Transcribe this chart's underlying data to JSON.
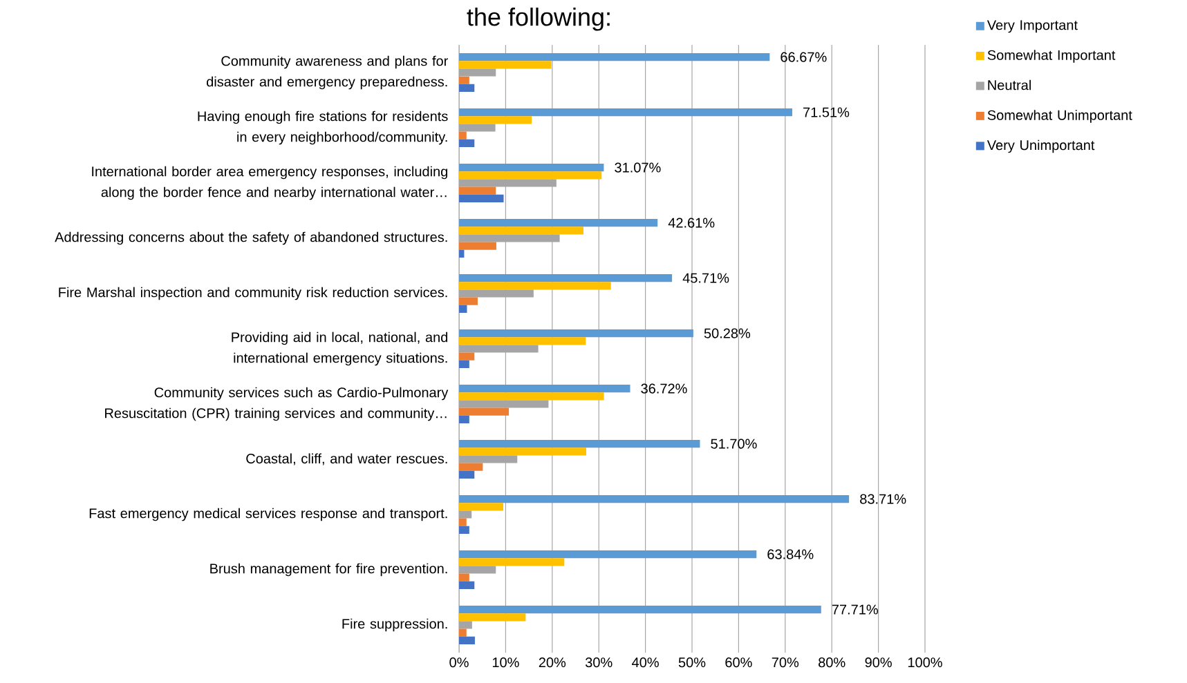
{
  "chart_data": {
    "type": "bar",
    "orientation": "horizontal",
    "title": "the following:",
    "categories": [
      "Community awareness and plans for disaster and emergency preparedness.",
      "Having enough fire stations for residents in every neighborhood/community.",
      "International border area emergency responses, including along the border fence and nearby international water…",
      "Addressing concerns about the safety of abandoned structures.",
      "Fire Marshal inspection and community risk reduction services.",
      "Providing aid in local, national, and international emergency situations.",
      "Community services such as Cardio-Pulmonary Resuscitation (CPR) training services and community…",
      "Coastal, cliff, and water rescues.",
      "Fast emergency medical services response and transport.",
      "Brush management for fire prevention.",
      "Fire suppression."
    ],
    "series": [
      {
        "name": "Very Important",
        "color": "#5b9bd5",
        "values": [
          66.67,
          71.51,
          31.07,
          42.61,
          45.71,
          50.28,
          36.72,
          51.7,
          83.71,
          63.84,
          77.71
        ],
        "value_labels": [
          "66.67%",
          "71.51%",
          "31.07%",
          "42.61%",
          "45.71%",
          "50.28%",
          "36.72%",
          "51.70%",
          "83.71%",
          "63.84%",
          "77.71%"
        ]
      },
      {
        "name": "Somewhat Important",
        "color": "#ffc000",
        "values": [
          19.8,
          15.6,
          30.6,
          26.7,
          32.6,
          27.2,
          31.1,
          27.3,
          9.5,
          22.6,
          14.3
        ]
      },
      {
        "name": "Neutral",
        "color": "#a5a5a5",
        "values": [
          7.9,
          7.8,
          20.9,
          21.6,
          16.0,
          17.0,
          19.2,
          12.5,
          2.7,
          7.9,
          2.8
        ]
      },
      {
        "name": "Somewhat Unimportant",
        "color": "#ed7d31",
        "values": [
          2.2,
          1.6,
          7.9,
          8.0,
          4.0,
          3.3,
          10.7,
          5.1,
          1.6,
          2.2,
          1.6
        ]
      },
      {
        "name": "Very Unimportant",
        "color": "#4472c4",
        "values": [
          3.3,
          3.3,
          9.6,
          1.1,
          1.7,
          2.2,
          2.2,
          3.3,
          2.2,
          3.3,
          3.4
        ]
      }
    ],
    "xlim": [
      0,
      100
    ],
    "xticks": [
      {
        "value": 0,
        "label": "0%"
      },
      {
        "value": 10,
        "label": "10%"
      },
      {
        "value": 20,
        "label": "20%"
      },
      {
        "value": 30,
        "label": "30%"
      },
      {
        "value": 40,
        "label": "40%"
      },
      {
        "value": 50,
        "label": "50%"
      },
      {
        "value": 60,
        "label": "60%"
      },
      {
        "value": 70,
        "label": "70%"
      },
      {
        "value": 80,
        "label": "80%"
      },
      {
        "value": 90,
        "label": "90%"
      },
      {
        "value": 100,
        "label": "100%"
      }
    ],
    "grid": "x",
    "legend": "right"
  }
}
